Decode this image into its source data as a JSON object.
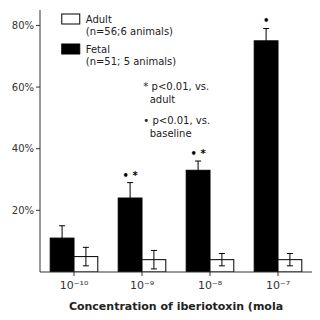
{
  "chart_data": {
    "type": "bar",
    "categories": [
      "10⁻¹⁰",
      "10⁻⁹",
      "10⁻⁸",
      "10⁻⁷"
    ],
    "series": [
      {
        "name": "Fetal\n(n=51; 5 animals)",
        "color": "black",
        "values": [
          11,
          24,
          33,
          75
        ],
        "errors": [
          4,
          5,
          3,
          4
        ]
      },
      {
        "name": "Adult\n(n=56;6 animals)",
        "color": "white",
        "values": [
          5,
          4,
          4,
          4
        ],
        "errors": [
          3,
          3,
          2,
          2
        ]
      }
    ],
    "x_label": "Concentration of iberiotoxin (mola",
    "ylim": [
      0,
      85
    ],
    "yticks": [
      {
        "value": 20,
        "label": "20%"
      },
      {
        "value": 40,
        "label": "40%"
      },
      {
        "value": 60,
        "label": "60%"
      },
      {
        "value": 80,
        "label": "80%"
      }
    ],
    "grid": false,
    "legend": "upper left",
    "annotations": [
      {
        "text": "• *",
        "category": "10⁻⁹",
        "series": "Fetal\n(n=51; 5 animals)"
      },
      {
        "text": "• *",
        "category": "10⁻⁸",
        "series": "Fetal\n(n=51; 5 animals)"
      },
      {
        "text": "•",
        "category": "10⁻⁷",
        "series": "Fetal\n(n=51; 5 animals)"
      },
      {
        "text": "* p<0.01, vs.\n  adult"
      },
      {
        "text": "• p<0.01, vs.\n  baseline"
      }
    ]
  }
}
